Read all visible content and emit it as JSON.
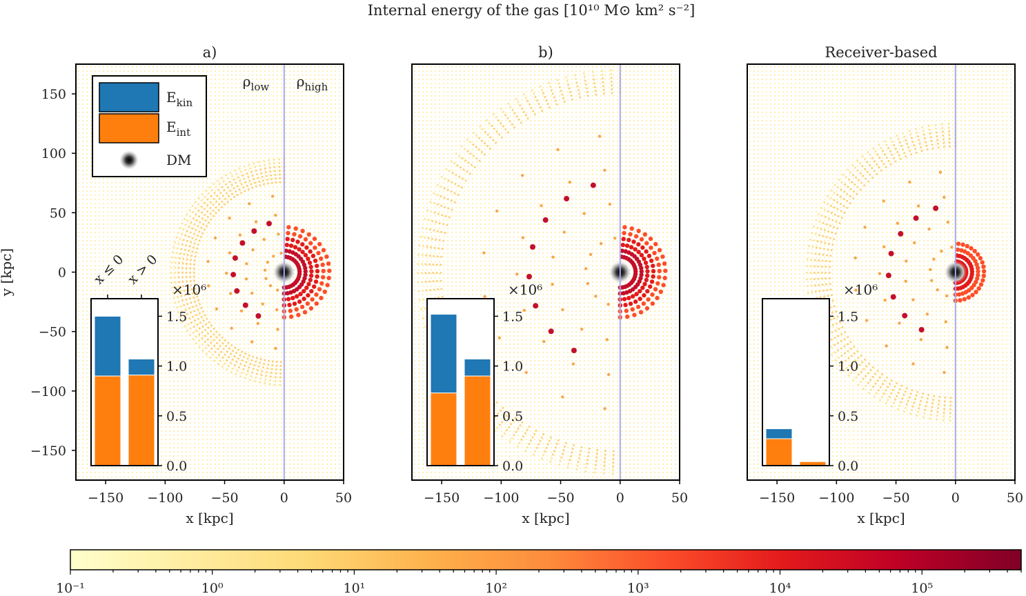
{
  "suptitle": "Internal energy of the gas [10¹⁰ M⊙ km² s⁻²]",
  "colors": {
    "ekin": "#1f77b4",
    "eint": "#ff7f0e",
    "divider": "#a8a8f0",
    "frame": "#000000"
  },
  "chart_data": [
    {
      "type": "scatter",
      "title": "a)",
      "xlabel": "x [kpc]",
      "ylabel": "y [kpc]",
      "xlim": [
        -175,
        50
      ],
      "ylim": [
        -175,
        175
      ],
      "xticks": [
        -150,
        -100,
        -50,
        0,
        50
      ],
      "yticks": [
        150,
        100,
        50,
        0,
        -50,
        -100,
        -150
      ],
      "density_labels": [
        "ρ_low",
        "ρ_high"
      ],
      "legend": {
        "placement": "upper-left",
        "entries": [
          "E_kin",
          "E_int",
          "DM"
        ]
      },
      "cloud": {
        "left_radius": 95,
        "right_radius": 38
      },
      "inset": {
        "type": "bar",
        "stacked": true,
        "categories": [
          "x ≤ 0",
          "x > 0"
        ],
        "scale_label": "×10⁶",
        "yticks": [
          0.0,
          0.5,
          1.0,
          1.5
        ],
        "ylim": [
          0,
          1.6
        ],
        "series": [
          {
            "name": "E_int",
            "values": [
              0.9,
              0.91
            ]
          },
          {
            "name": "E_kin",
            "values": [
              0.6,
              0.16
            ]
          }
        ]
      }
    },
    {
      "type": "scatter",
      "title": "b)",
      "xlabel": "x [kpc]",
      "ylabel": "",
      "xlim": [
        -175,
        50
      ],
      "ylim": [
        -175,
        175
      ],
      "xticks": [
        -150,
        -100,
        -50,
        0,
        50
      ],
      "cloud": {
        "left_radius": 170,
        "right_radius": 38
      },
      "inset": {
        "type": "bar",
        "stacked": true,
        "categories": [
          "x ≤ 0",
          "x > 0"
        ],
        "scale_label": "×10⁶",
        "yticks": [
          0.0,
          0.5,
          1.0,
          1.5
        ],
        "ylim": [
          0,
          1.6
        ],
        "series": [
          {
            "name": "E_int",
            "values": [
              0.73,
              0.9
            ]
          },
          {
            "name": "E_kin",
            "values": [
              0.79,
              0.17
            ]
          }
        ]
      }
    },
    {
      "type": "scatter",
      "title": "Receiver-based",
      "xlabel": "x [kpc]",
      "ylabel": "",
      "xlim": [
        -175,
        50
      ],
      "ylim": [
        -175,
        175
      ],
      "xticks": [
        -150,
        -100,
        -50,
        0,
        50
      ],
      "cloud": {
        "left_radius": 125,
        "right_radius": 24
      },
      "inset": {
        "type": "bar",
        "stacked": true,
        "categories": [
          "x ≤ 0",
          "x > 0"
        ],
        "scale_label": "×10⁶",
        "yticks": [
          0.0,
          0.5,
          1.0,
          1.5
        ],
        "ylim": [
          0,
          1.6
        ],
        "series": [
          {
            "name": "E_int",
            "values": [
              0.27,
              0.04
            ]
          },
          {
            "name": "E_kin",
            "values": [
              0.1,
              0.0
            ]
          }
        ]
      }
    }
  ],
  "colorbar": {
    "scale": "log",
    "range": [
      0.1,
      500000
    ],
    "ticks": [
      "10⁻¹",
      "10⁰",
      "10¹",
      "10²",
      "10³",
      "10⁴",
      "10⁵"
    ],
    "colormap": [
      "#ffffcc",
      "#ffeda0",
      "#fed976",
      "#feb24c",
      "#fd8d3c",
      "#fc4e2a",
      "#e31a1c",
      "#bd0026",
      "#800026"
    ]
  }
}
